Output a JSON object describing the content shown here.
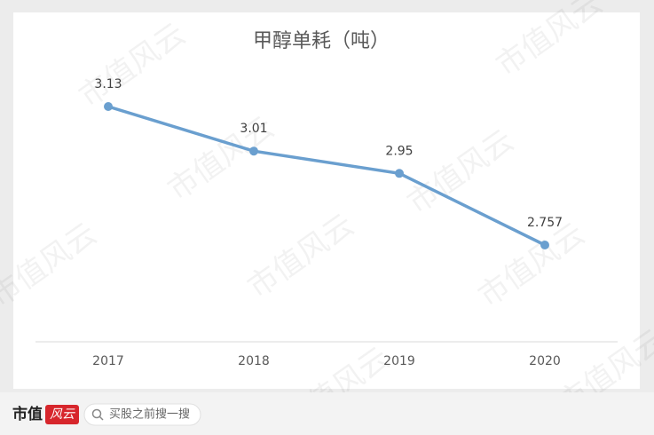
{
  "chart_data": {
    "type": "line",
    "title": "甲醇单耗（吨）",
    "categories": [
      "2017",
      "2018",
      "2019",
      "2020"
    ],
    "values": [
      3.13,
      3.01,
      2.95,
      2.757
    ],
    "color": "#6a9fcf"
  },
  "watermark": "市值风云",
  "footer": {
    "brand_main": "市值",
    "brand_accent": "风云",
    "search_placeholder": "买股之前搜一搜"
  }
}
